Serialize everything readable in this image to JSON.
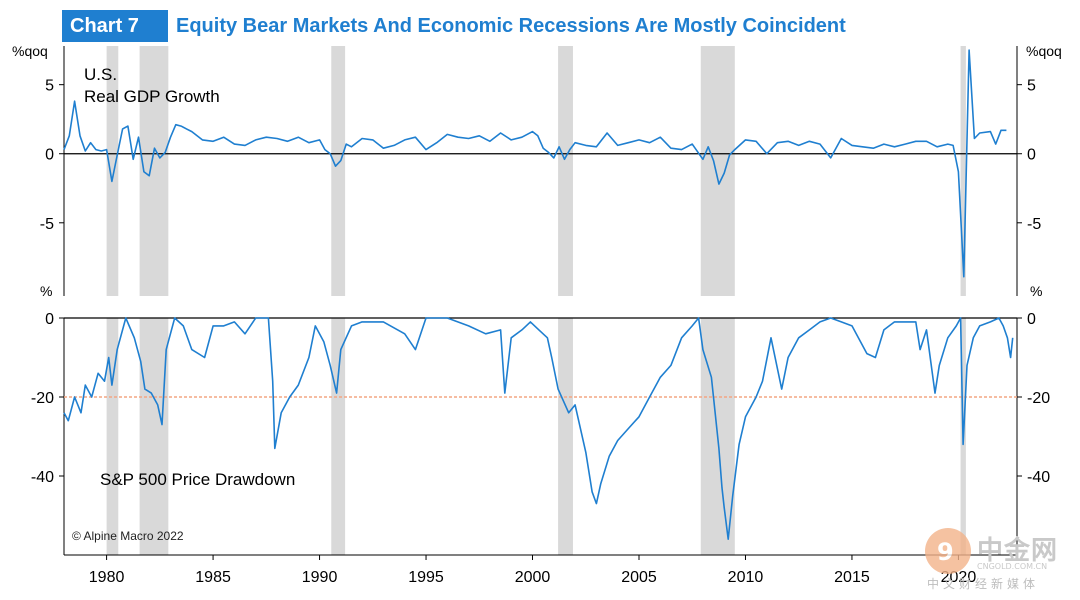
{
  "header": {
    "badge": "Chart 7",
    "title": "Equity Bear Markets And Economic Recessions Are Mostly Coincident"
  },
  "copyright": "© Alpine Macro 2022",
  "watermark": {
    "brand": "中金网",
    "url": "CNGOLD.COM.CN",
    "subtitle": "中文财经新媒体"
  },
  "colors": {
    "line": "#1f7fd0",
    "recession": "#d9d9d9",
    "threshold": "#f4a582",
    "axis": "#000000"
  },
  "chart_data": [
    {
      "id": "gdp",
      "type": "line",
      "title": "U.S. Real GDP Growth",
      "title_lines": [
        "U.S.",
        "Real GDP Growth"
      ],
      "ylabel_left": "%qoq",
      "ylabel_right": "%qoq",
      "ylim": [
        -10.3,
        7.8
      ],
      "yticks": [
        5,
        0,
        -5
      ],
      "ytick_labels": [
        "5",
        "0",
        "-5"
      ],
      "xlim": [
        1978.0,
        2022.75
      ],
      "x": [
        1978.0,
        1978.25,
        1978.5,
        1978.75,
        1979.0,
        1979.25,
        1979.5,
        1979.75,
        1980.0,
        1980.25,
        1980.5,
        1980.75,
        1981.0,
        1981.25,
        1981.5,
        1981.75,
        1982.0,
        1982.25,
        1982.5,
        1982.75,
        1983.0,
        1983.25,
        1983.5,
        1983.75,
        1984.0,
        1984.5,
        1985.0,
        1985.5,
        1986.0,
        1986.5,
        1987.0,
        1987.5,
        1988.0,
        1988.5,
        1989.0,
        1989.5,
        1990.0,
        1990.25,
        1990.5,
        1990.75,
        1991.0,
        1991.25,
        1991.5,
        1992.0,
        1992.5,
        1993.0,
        1993.5,
        1994.0,
        1994.5,
        1995.0,
        1995.5,
        1996.0,
        1996.5,
        1997.0,
        1997.5,
        1998.0,
        1998.5,
        1999.0,
        1999.5,
        2000.0,
        2000.25,
        2000.5,
        2000.75,
        2001.0,
        2001.25,
        2001.5,
        2001.75,
        2002.0,
        2002.5,
        2003.0,
        2003.5,
        2004.0,
        2004.5,
        2005.0,
        2005.5,
        2006.0,
        2006.5,
        2007.0,
        2007.5,
        2008.0,
        2008.25,
        2008.5,
        2008.75,
        2009.0,
        2009.25,
        2009.5,
        2010.0,
        2010.5,
        2011.0,
        2011.5,
        2012.0,
        2012.5,
        2013.0,
        2013.5,
        2014.0,
        2014.5,
        2015.0,
        2015.5,
        2016.0,
        2016.5,
        2017.0,
        2017.5,
        2018.0,
        2018.5,
        2019.0,
        2019.5,
        2019.75,
        2020.0,
        2020.25,
        2020.5,
        2020.75,
        2021.0,
        2021.5,
        2021.75,
        2022.0,
        2022.25
      ],
      "values": [
        0.3,
        1.3,
        3.8,
        1.3,
        0.2,
        0.8,
        0.3,
        0.2,
        0.3,
        -2.0,
        -0.1,
        1.8,
        2.0,
        -0.4,
        1.2,
        -1.3,
        -1.6,
        0.4,
        -0.3,
        0.1,
        1.2,
        2.1,
        2.0,
        1.8,
        1.6,
        1.0,
        0.9,
        1.2,
        0.7,
        0.6,
        1.0,
        1.2,
        1.1,
        0.9,
        1.2,
        0.8,
        1.0,
        0.3,
        0.0,
        -0.9,
        -0.5,
        0.7,
        0.5,
        1.1,
        1.0,
        0.4,
        0.6,
        1.0,
        1.2,
        0.3,
        0.8,
        1.4,
        1.2,
        1.1,
        1.3,
        0.9,
        1.5,
        1.0,
        1.2,
        1.6,
        1.3,
        0.4,
        0.1,
        -0.3,
        0.5,
        -0.4,
        0.3,
        0.8,
        0.6,
        0.5,
        1.5,
        0.6,
        0.8,
        1.0,
        0.8,
        1.2,
        0.4,
        0.3,
        0.7,
        -0.4,
        0.5,
        -0.5,
        -2.2,
        -1.4,
        -0.1,
        0.3,
        1.0,
        0.9,
        0.0,
        0.8,
        0.9,
        0.6,
        0.9,
        0.7,
        -0.3,
        1.1,
        0.6,
        0.5,
        0.4,
        0.7,
        0.5,
        0.7,
        0.9,
        0.9,
        0.5,
        0.7,
        0.6,
        -1.3,
        -8.9,
        7.5,
        1.1,
        1.5,
        1.6,
        0.7,
        1.7,
        1.7
      ]
    },
    {
      "id": "drawdown",
      "type": "line",
      "title": "S&P 500 Price Drawdown",
      "ylabel_left": "%",
      "ylabel_right": "%",
      "ylim": [
        -60,
        0
      ],
      "yticks": [
        0,
        -20,
        -40
      ],
      "ytick_labels": [
        "0",
        "-20",
        "-40"
      ],
      "threshold": -20,
      "xlim": [
        1978.0,
        2022.75
      ],
      "x": [
        1978.0,
        1978.2,
        1978.5,
        1978.8,
        1979.0,
        1979.3,
        1979.6,
        1979.9,
        1980.1,
        1980.25,
        1980.5,
        1980.9,
        1981.3,
        1981.6,
        1981.8,
        1982.1,
        1982.4,
        1982.6,
        1982.8,
        1983.2,
        1983.6,
        1984.0,
        1984.6,
        1985.0,
        1985.5,
        1986.0,
        1986.5,
        1987.0,
        1987.6,
        1987.8,
        1987.9,
        1988.2,
        1988.6,
        1989.0,
        1989.5,
        1989.8,
        1990.2,
        1990.5,
        1990.8,
        1991.0,
        1991.5,
        1992.0,
        1993.0,
        1994.0,
        1994.5,
        1995.0,
        1996.0,
        1997.0,
        1997.8,
        1998.5,
        1998.7,
        1999.0,
        1999.5,
        1999.9,
        2000.3,
        2000.7,
        2000.9,
        2001.2,
        2001.7,
        2002.0,
        2002.5,
        2002.8,
        2003.0,
        2003.2,
        2003.6,
        2004.0,
        2004.5,
        2005.0,
        2005.5,
        2006.0,
        2006.5,
        2007.0,
        2007.5,
        2007.8,
        2008.0,
        2008.4,
        2008.75,
        2008.9,
        2009.0,
        2009.19,
        2009.4,
        2009.7,
        2010.0,
        2010.5,
        2010.8,
        2011.2,
        2011.7,
        2012.0,
        2012.5,
        2013.0,
        2013.5,
        2014.0,
        2014.5,
        2015.0,
        2015.7,
        2016.1,
        2016.5,
        2017.0,
        2017.5,
        2018.0,
        2018.2,
        2018.5,
        2018.9,
        2019.1,
        2019.5,
        2019.9,
        2020.1,
        2020.22,
        2020.4,
        2020.7,
        2021.0,
        2021.5,
        2021.9,
        2022.1,
        2022.3,
        2022.45,
        2022.55
      ],
      "values": [
        -24,
        -26,
        -20,
        -24,
        -17,
        -20,
        -14,
        -16,
        -10,
        -17,
        -8,
        0,
        -5,
        -11,
        -18,
        -19,
        -22,
        -27,
        -8,
        0,
        -2,
        -8,
        -10,
        -2,
        -2,
        -1,
        -4,
        0,
        0,
        -16,
        -33,
        -24,
        -20,
        -17,
        -10,
        -2,
        -6,
        -12,
        -19,
        -8,
        -2,
        -1,
        -1,
        -4,
        -8,
        0,
        0,
        -2,
        -4,
        -3,
        -19,
        -5,
        -3,
        -1,
        -3,
        -5,
        -10,
        -18,
        -24,
        -22,
        -34,
        -44,
        -47,
        -42,
        -35,
        -31,
        -28,
        -25,
        -20,
        -15,
        -12,
        -5,
        -2,
        0,
        -8,
        -15,
        -33,
        -43,
        -48,
        -56,
        -45,
        -32,
        -25,
        -20,
        -16,
        -5,
        -18,
        -10,
        -5,
        -3,
        -1,
        0,
        -1,
        -2,
        -9,
        -10,
        -3,
        -1,
        -1,
        -1,
        -8,
        -3,
        -19,
        -12,
        -5,
        -2,
        0,
        -32,
        -12,
        -5,
        -2,
        -1,
        0,
        -2,
        -5,
        -10,
        -5
      ]
    }
  ],
  "recessions": [
    [
      1980.0,
      1980.55
    ],
    [
      1981.55,
      1982.9
    ],
    [
      1990.55,
      1991.2
    ],
    [
      2001.2,
      2001.9
    ],
    [
      2007.9,
      2009.5
    ],
    [
      2020.1,
      2020.35
    ]
  ],
  "xaxis": {
    "ticks": [
      1980,
      1985,
      1990,
      1995,
      2000,
      2005,
      2010,
      2015,
      2020
    ],
    "labels": [
      "1980",
      "1985",
      "1990",
      "1995",
      "2000",
      "2005",
      "2010",
      "2015",
      "2020"
    ]
  }
}
